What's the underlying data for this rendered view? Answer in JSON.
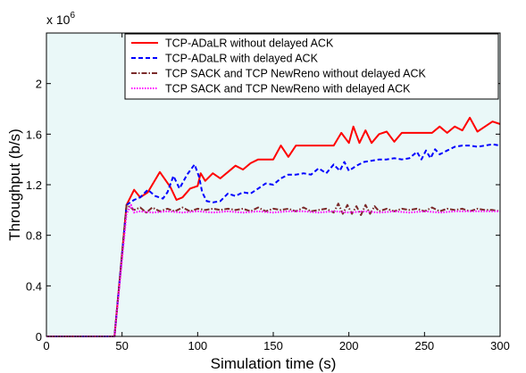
{
  "chart_data": {
    "type": "line",
    "title": "",
    "xlabel": "Simulation time (s)",
    "ylabel": "Throughput (b/s)",
    "y_multiplier": "x 10",
    "y_multiplier_exp": "6",
    "xlim": [
      0,
      300
    ],
    "ylim": [
      0,
      2.4
    ],
    "x_ticks": [
      0,
      50,
      100,
      150,
      200,
      250,
      300
    ],
    "x_tick_labels": [
      "0",
      "50",
      "100",
      "150",
      "200",
      "250",
      "300"
    ],
    "y_ticks": [
      0,
      0.4,
      0.8,
      1.2,
      1.6,
      2
    ],
    "y_tick_labels": [
      "0",
      "0.4",
      "0.8",
      "1.2",
      "1.6",
      "2"
    ],
    "grid": false,
    "background": "#eaf8f8",
    "legend_position": "top-right",
    "series": [
      {
        "name": "TCP-ADaLR without delayed ACK",
        "color": "#ff0000",
        "dash": "solid",
        "x": [
          0,
          45,
          53,
          58,
          62,
          67,
          75,
          82,
          86,
          90,
          95,
          100,
          102,
          105,
          110,
          115,
          120,
          125,
          130,
          135,
          140,
          145,
          150,
          155,
          160,
          165,
          170,
          175,
          180,
          185,
          190,
          195,
          200,
          203,
          207,
          211,
          215,
          220,
          225,
          230,
          235,
          240,
          245,
          250,
          255,
          260,
          265,
          270,
          275,
          280,
          285,
          290,
          295,
          300
        ],
        "y": [
          0,
          0,
          1.04,
          1.16,
          1.1,
          1.14,
          1.3,
          1.18,
          1.08,
          1.1,
          1.17,
          1.19,
          1.29,
          1.23,
          1.29,
          1.25,
          1.3,
          1.35,
          1.32,
          1.37,
          1.4,
          1.4,
          1.4,
          1.51,
          1.42,
          1.51,
          1.51,
          1.51,
          1.51,
          1.51,
          1.51,
          1.61,
          1.53,
          1.66,
          1.53,
          1.63,
          1.53,
          1.6,
          1.62,
          1.54,
          1.61,
          1.61,
          1.61,
          1.61,
          1.61,
          1.66,
          1.61,
          1.66,
          1.63,
          1.73,
          1.62,
          1.66,
          1.7,
          1.68
        ]
      },
      {
        "name": "TCP-ADaLR with delayed ACK",
        "color": "#0000ff",
        "dash": "dashed",
        "x": [
          0,
          45,
          53,
          58,
          62,
          67,
          72,
          77,
          80,
          84,
          88,
          93,
          98,
          101,
          103,
          106,
          110,
          115,
          120,
          125,
          130,
          135,
          140,
          145,
          150,
          155,
          160,
          165,
          170,
          175,
          180,
          185,
          190,
          194,
          197,
          200,
          205,
          210,
          215,
          220,
          225,
          230,
          235,
          240,
          245,
          248,
          251,
          254,
          257,
          260,
          265,
          270,
          275,
          280,
          285,
          290,
          295,
          300
        ],
        "y": [
          0,
          0,
          1.04,
          1.08,
          1.1,
          1.16,
          1.11,
          1.09,
          1.14,
          1.27,
          1.17,
          1.28,
          1.36,
          1.26,
          1.14,
          1.07,
          1.06,
          1.07,
          1.13,
          1.11,
          1.14,
          1.13,
          1.17,
          1.21,
          1.2,
          1.25,
          1.28,
          1.28,
          1.29,
          1.28,
          1.33,
          1.29,
          1.36,
          1.31,
          1.38,
          1.31,
          1.35,
          1.38,
          1.39,
          1.4,
          1.4,
          1.41,
          1.4,
          1.41,
          1.46,
          1.4,
          1.47,
          1.41,
          1.48,
          1.44,
          1.47,
          1.5,
          1.51,
          1.51,
          1.5,
          1.51,
          1.52,
          1.51
        ]
      },
      {
        "name": "TCP SACK and TCP NewReno without delayed ACK",
        "color": "#7a2a2a",
        "dash": "dashdot",
        "x": [
          0,
          45,
          53,
          58,
          62,
          66,
          70,
          75,
          80,
          85,
          90,
          95,
          100,
          105,
          110,
          115,
          120,
          125,
          130,
          135,
          140,
          145,
          150,
          155,
          160,
          165,
          170,
          175,
          180,
          185,
          190,
          193,
          196,
          199,
          202,
          205,
          208,
          211,
          214,
          217,
          220,
          225,
          230,
          235,
          240,
          245,
          250,
          255,
          260,
          265,
          270,
          275,
          280,
          285,
          290,
          295,
          300
        ],
        "y": [
          0,
          0,
          1.04,
          1.0,
          1.02,
          0.98,
          1.02,
          0.99,
          1.01,
          0.99,
          1.02,
          0.99,
          1.01,
          1.0,
          1.01,
          1.0,
          1.01,
          1.0,
          1.01,
          0.99,
          1.02,
          0.99,
          1.01,
          1.0,
          1.01,
          0.99,
          1.02,
          0.99,
          1.0,
          1.01,
          0.98,
          1.05,
          0.97,
          1.04,
          0.97,
          1.03,
          0.96,
          1.04,
          0.97,
          1.03,
          0.99,
          1.01,
          0.99,
          1.01,
          1.0,
          1.01,
          0.99,
          1.02,
          0.99,
          1.01,
          1.0,
          1.01,
          0.99,
          1.01,
          1.0,
          1.0,
          0.99
        ]
      },
      {
        "name": "TCP SACK and TCP NewReno with delayed ACK",
        "color": "#ff00ff",
        "dash": "dotted",
        "x": [
          0,
          45,
          53,
          56,
          58,
          62,
          70,
          80,
          90,
          100,
          110,
          120,
          130,
          140,
          150,
          160,
          170,
          180,
          190,
          200,
          210,
          220,
          230,
          240,
          250,
          260,
          270,
          280,
          290,
          300
        ],
        "y": [
          0,
          0,
          0.97,
          1.04,
          0.98,
          0.99,
          0.98,
          0.99,
          0.98,
          0.99,
          0.98,
          0.99,
          0.98,
          0.99,
          0.98,
          0.99,
          0.99,
          0.98,
          0.99,
          0.98,
          0.99,
          0.98,
          0.99,
          0.98,
          0.99,
          0.98,
          0.99,
          0.99,
          0.99,
          0.99
        ]
      }
    ]
  }
}
